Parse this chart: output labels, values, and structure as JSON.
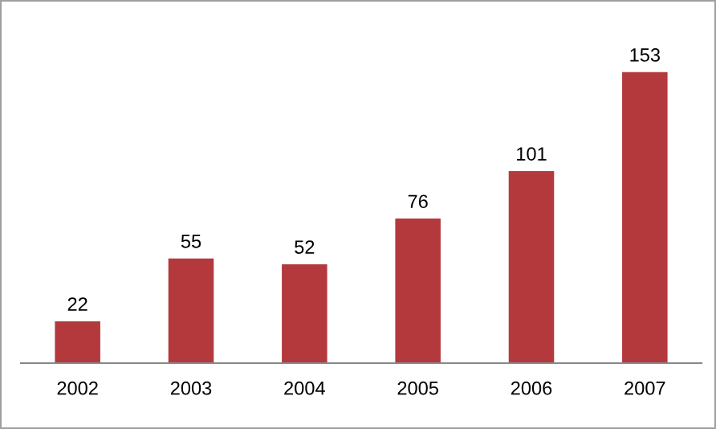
{
  "chart_data": {
    "type": "bar",
    "categories": [
      "2002",
      "2003",
      "2004",
      "2005",
      "2006",
      "2007"
    ],
    "values": [
      22,
      55,
      52,
      76,
      101,
      153
    ],
    "color": "#b4393d",
    "data_labels": true,
    "grid": false,
    "legend": false
  }
}
